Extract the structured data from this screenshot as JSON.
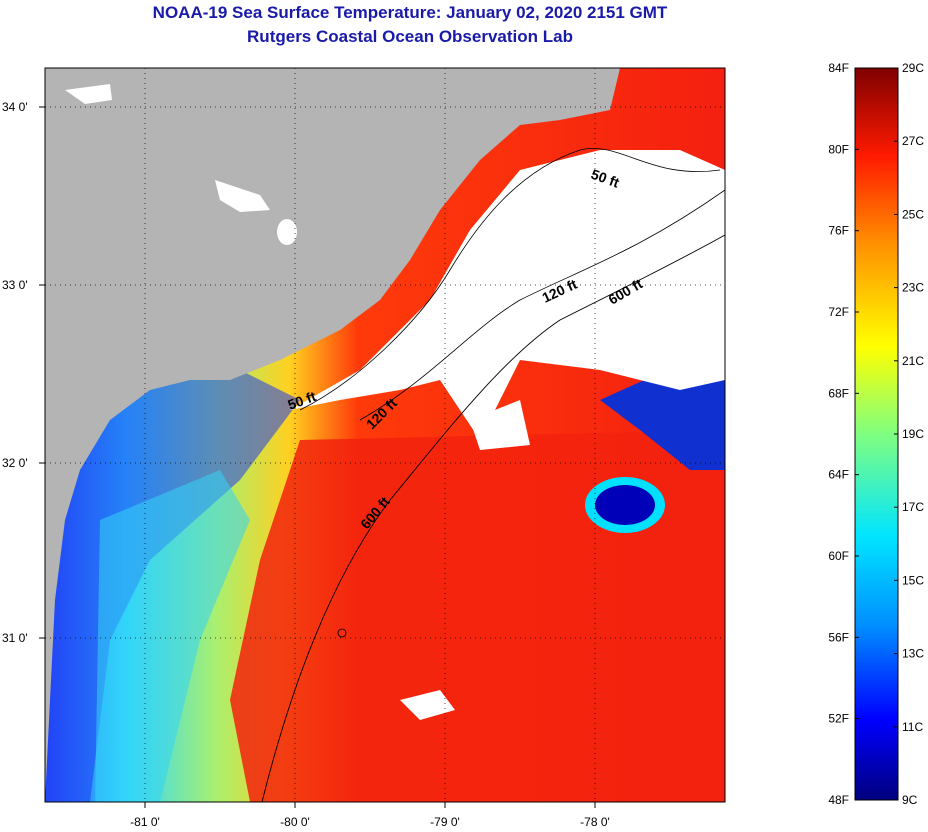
{
  "title": {
    "line1": "NOAA-19 Sea Surface Temperature:  January 02, 2020 2151 GMT",
    "line2": "Rutgers Coastal Ocean Observation Lab"
  },
  "map": {
    "lon_ticks": [
      "-81 0'",
      "-80 0'",
      "-79 0'",
      "-78 0'"
    ],
    "lat_ticks": [
      "34 0'",
      "33 0'",
      "32 0'",
      "31 0'"
    ],
    "contours": [
      {
        "label": "50 ft",
        "id": "50a"
      },
      {
        "label": "120 ft",
        "id": "120a"
      },
      {
        "label": "600 ft",
        "id": "600a"
      },
      {
        "label": "50 ft",
        "id": "50b"
      },
      {
        "label": "120 ft",
        "id": "120b"
      },
      {
        "label": "600 ft",
        "id": "600b"
      }
    ],
    "colors": {
      "land": "#b4b4b4",
      "cloud": "#ffffff"
    }
  },
  "colorbar": {
    "f_labels": [
      "84F",
      "80F",
      "76F",
      "72F",
      "68F",
      "64F",
      "60F",
      "56F",
      "52F",
      "48F"
    ],
    "c_labels": [
      "29C",
      "27C",
      "25C",
      "23C",
      "21C",
      "19C",
      "17C",
      "15C",
      "13C",
      "11C",
      "9C"
    ]
  }
}
